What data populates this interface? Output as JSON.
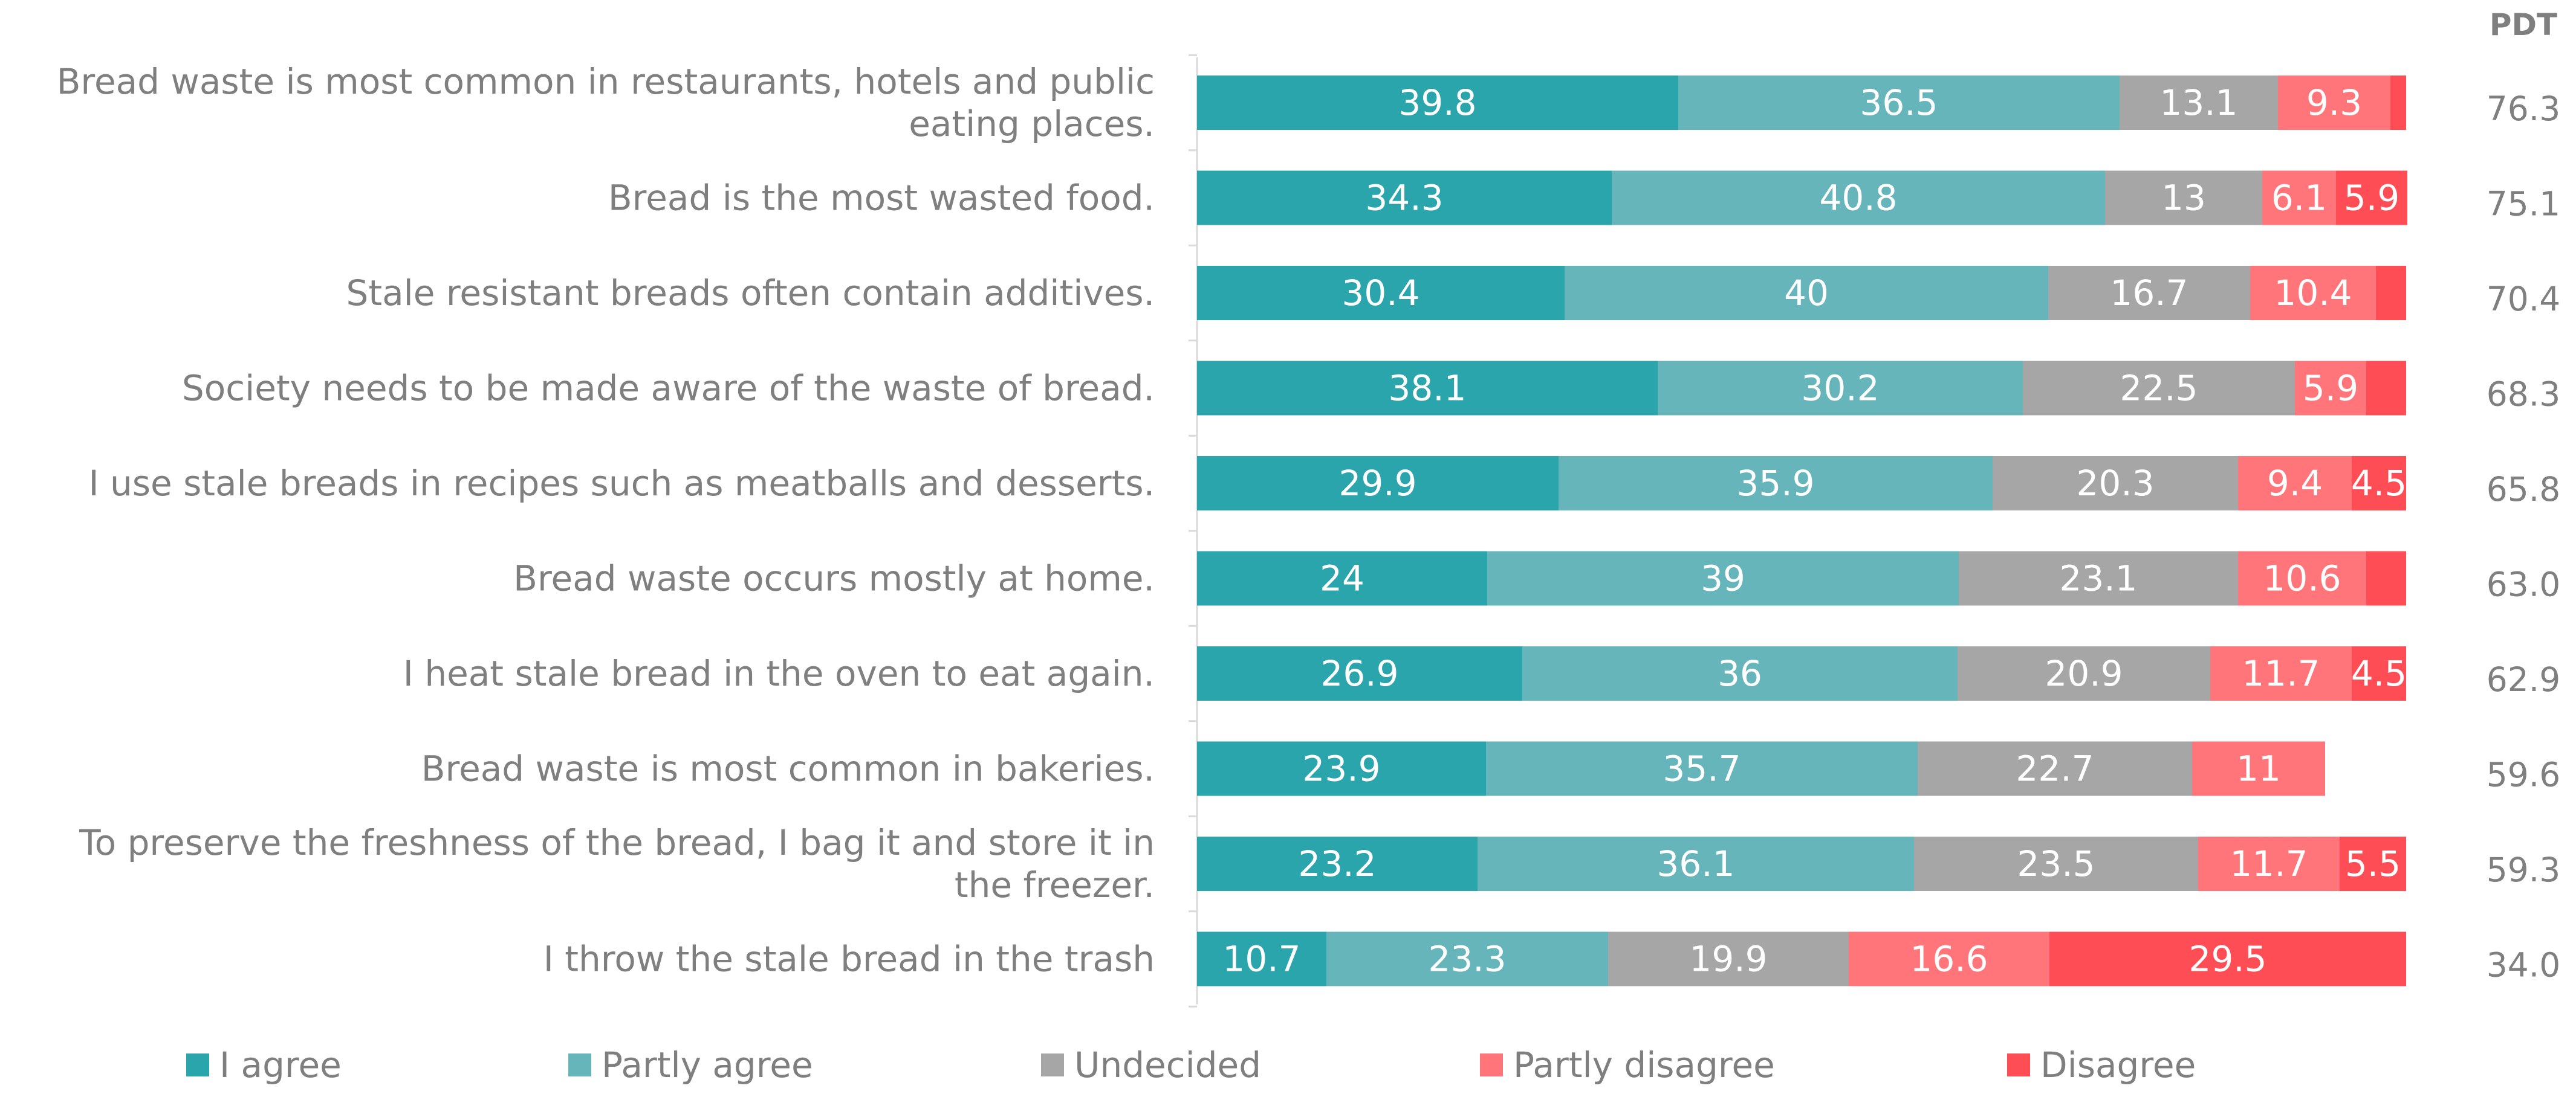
{
  "chart_data": {
    "type": "bar",
    "orientation": "horizontal",
    "stacked": true,
    "pdt_header": "PDT",
    "categories": [
      [
        "Bread waste is most common in restaurants, hotels and public",
        "eating places."
      ],
      [
        "Bread is the most wasted food."
      ],
      [
        "Stale resistant breads often contain additives."
      ],
      [
        "Society needs to be made aware of the waste of bread."
      ],
      [
        "I use stale breads in recipes such as meatballs and desserts."
      ],
      [
        "Bread waste occurs mostly at home."
      ],
      [
        "I heat stale bread in the oven to eat again."
      ],
      [
        "Bread waste is most common in bakeries."
      ],
      [
        "To preserve the freshness of the bread, I bag it and store it in",
        "the freezer."
      ],
      [
        "I throw the stale bread in the trash"
      ]
    ],
    "pdt_values": [
      "76.3",
      "75.1",
      "70.4",
      "68.3",
      "65.8",
      "63.0",
      "62.9",
      "59.6",
      "59.3",
      "34.0"
    ],
    "series": [
      {
        "name": "I agree",
        "color": "#2aa5ab",
        "values": [
          39.8,
          34.3,
          30.4,
          38.1,
          29.9,
          24,
          26.9,
          23.9,
          23.2,
          10.7
        ]
      },
      {
        "name": "Partly agree",
        "color": "#66b5bb",
        "values": [
          36.5,
          40.8,
          40,
          30.2,
          35.9,
          39,
          36,
          35.7,
          36.1,
          23.3
        ]
      },
      {
        "name": "Undecided",
        "color": "#a6a6a6",
        "values": [
          13.1,
          13,
          16.7,
          22.5,
          20.3,
          23.1,
          20.9,
          22.7,
          23.5,
          19.9
        ]
      },
      {
        "name": "Partly disagree",
        "color": "#ff7579",
        "values": [
          9.3,
          6.1,
          10.4,
          5.9,
          9.4,
          10.6,
          11.7,
          11,
          11.7,
          16.6
        ]
      },
      {
        "name": "Disagree",
        "color": "#ff4d55",
        "values": [
          1.3,
          5.9,
          2.5,
          3.3,
          4.5,
          3.3,
          4.5,
          0,
          5.5,
          29.5
        ]
      }
    ],
    "value_labels": [
      [
        "39.8",
        "36.5",
        "13.1",
        "9.3",
        ""
      ],
      [
        "34.3",
        "40.8",
        "13",
        "6.1",
        "5.9"
      ],
      [
        "30.4",
        "40",
        "16.7",
        "10.4",
        ""
      ],
      [
        "38.1",
        "30.2",
        "22.5",
        "5.9",
        ""
      ],
      [
        "29.9",
        "35.9",
        "20.3",
        "9.4",
        "4.5"
      ],
      [
        "24",
        "39",
        "23.1",
        "10.6",
        ""
      ],
      [
        "26.9",
        "36",
        "20.9",
        "11.7",
        "4.5"
      ],
      [
        "23.9",
        "35.7",
        "22.7",
        "11",
        ""
      ],
      [
        "23.2",
        "36.1",
        "23.5",
        "11.7",
        "5.5"
      ],
      [
        "10.7",
        "23.3",
        "19.9",
        "16.6",
        "29.5"
      ]
    ],
    "xlim": [
      0,
      100
    ],
    "legend_position": "bottom",
    "grid": false
  }
}
